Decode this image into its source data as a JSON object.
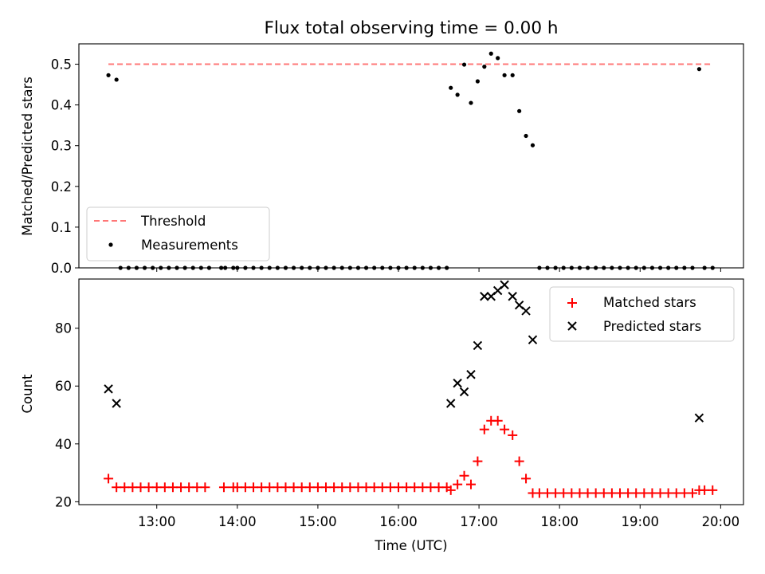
{
  "title": "Flux total observing time = 0.00 h",
  "colors": {
    "threshold": "#ff7777",
    "matched": "#ff0000",
    "predicted": "#000000",
    "measurement": "#000000"
  },
  "chart_data": [
    {
      "type": "scatter",
      "ylabel": "Matched/Predicted stars",
      "xlabel": "",
      "ylim": [
        0,
        0.55
      ],
      "xlim": [
        "12:02",
        "20:17"
      ],
      "yticks": [
        "0.0",
        "0.1",
        "0.2",
        "0.3",
        "0.4",
        "0.5"
      ],
      "grid": false,
      "legend": {
        "position": "lower-left",
        "entries": [
          "Threshold",
          "Measurements"
        ]
      },
      "threshold": {
        "name": "Threshold",
        "y": 0.5,
        "x_start": "12:24",
        "x_end": "19:54"
      },
      "series": [
        {
          "name": "Measurements",
          "points": [
            [
              "12:24",
              0.473
            ],
            [
              "12:30",
              0.462
            ],
            [
              "12:33",
              0
            ],
            [
              "12:39",
              0
            ],
            [
              "12:45",
              0
            ],
            [
              "12:51",
              0
            ],
            [
              "12:57",
              0
            ],
            [
              "13:03",
              0
            ],
            [
              "13:09",
              0
            ],
            [
              "13:15",
              0
            ],
            [
              "13:21",
              0
            ],
            [
              "13:27",
              0
            ],
            [
              "13:33",
              0
            ],
            [
              "13:39",
              0
            ],
            [
              "13:48",
              0
            ],
            [
              "13:51",
              0
            ],
            [
              "13:57",
              0
            ],
            [
              "14:00",
              0
            ],
            [
              "14:06",
              0
            ],
            [
              "14:12",
              0
            ],
            [
              "14:18",
              0
            ],
            [
              "14:24",
              0
            ],
            [
              "14:30",
              0
            ],
            [
              "14:36",
              0
            ],
            [
              "14:42",
              0
            ],
            [
              "14:48",
              0
            ],
            [
              "14:54",
              0
            ],
            [
              "15:00",
              0
            ],
            [
              "15:06",
              0
            ],
            [
              "15:12",
              0
            ],
            [
              "15:18",
              0
            ],
            [
              "15:24",
              0
            ],
            [
              "15:30",
              0
            ],
            [
              "15:36",
              0
            ],
            [
              "15:42",
              0
            ],
            [
              "15:48",
              0
            ],
            [
              "15:54",
              0
            ],
            [
              "16:00",
              0
            ],
            [
              "16:06",
              0
            ],
            [
              "16:12",
              0
            ],
            [
              "16:18",
              0
            ],
            [
              "16:24",
              0
            ],
            [
              "16:30",
              0
            ],
            [
              "16:36",
              0
            ],
            [
              "16:39",
              0.442
            ],
            [
              "16:44",
              0.425
            ],
            [
              "16:49",
              0.499
            ],
            [
              "16:54",
              0.405
            ],
            [
              "16:59",
              0.458
            ],
            [
              "17:04",
              0.494
            ],
            [
              "17:09",
              0.526
            ],
            [
              "17:14",
              0.515
            ],
            [
              "17:19",
              0.473
            ],
            [
              "17:25",
              0.473
            ],
            [
              "17:30",
              0.385
            ],
            [
              "17:35",
              0.324
            ],
            [
              "17:40",
              0.301
            ],
            [
              "17:45",
              0
            ],
            [
              "17:51",
              0
            ],
            [
              "17:57",
              0
            ],
            [
              "18:03",
              0
            ],
            [
              "18:09",
              0
            ],
            [
              "18:15",
              0
            ],
            [
              "18:21",
              0
            ],
            [
              "18:27",
              0
            ],
            [
              "18:33",
              0
            ],
            [
              "18:39",
              0
            ],
            [
              "18:45",
              0
            ],
            [
              "18:51",
              0
            ],
            [
              "18:57",
              0
            ],
            [
              "19:03",
              0
            ],
            [
              "19:09",
              0
            ],
            [
              "19:15",
              0
            ],
            [
              "19:21",
              0
            ],
            [
              "19:27",
              0
            ],
            [
              "19:33",
              0
            ],
            [
              "19:39",
              0
            ],
            [
              "19:44",
              0.488
            ],
            [
              "19:48",
              0
            ],
            [
              "19:54",
              0
            ]
          ]
        }
      ]
    },
    {
      "type": "scatter",
      "ylabel": "Count",
      "xlabel": "Time (UTC)",
      "ylim": [
        19,
        97
      ],
      "xlim": [
        "12:02",
        "20:17"
      ],
      "yticks": [
        "20",
        "40",
        "60",
        "80"
      ],
      "xticks": [
        "13:00",
        "14:00",
        "15:00",
        "16:00",
        "17:00",
        "18:00",
        "19:00",
        "20:00"
      ],
      "grid": false,
      "legend": {
        "position": "top-right",
        "entries": [
          "Matched stars",
          "Predicted stars"
        ]
      },
      "series": [
        {
          "name": "Matched stars",
          "points": [
            [
              "12:24",
              28
            ],
            [
              "12:30",
              25
            ],
            [
              "12:36",
              25
            ],
            [
              "12:42",
              25
            ],
            [
              "12:48",
              25
            ],
            [
              "12:54",
              25
            ],
            [
              "13:00",
              25
            ],
            [
              "13:06",
              25
            ],
            [
              "13:12",
              25
            ],
            [
              "13:18",
              25
            ],
            [
              "13:24",
              25
            ],
            [
              "13:30",
              25
            ],
            [
              "13:36",
              25
            ],
            [
              "13:50",
              25
            ],
            [
              "13:57",
              25
            ],
            [
              "14:00",
              25
            ],
            [
              "14:06",
              25
            ],
            [
              "14:12",
              25
            ],
            [
              "14:18",
              25
            ],
            [
              "14:24",
              25
            ],
            [
              "14:30",
              25
            ],
            [
              "14:36",
              25
            ],
            [
              "14:42",
              25
            ],
            [
              "14:48",
              25
            ],
            [
              "14:54",
              25
            ],
            [
              "15:00",
              25
            ],
            [
              "15:06",
              25
            ],
            [
              "15:12",
              25
            ],
            [
              "15:18",
              25
            ],
            [
              "15:24",
              25
            ],
            [
              "15:30",
              25
            ],
            [
              "15:36",
              25
            ],
            [
              "15:42",
              25
            ],
            [
              "15:48",
              25
            ],
            [
              "15:54",
              25
            ],
            [
              "16:00",
              25
            ],
            [
              "16:06",
              25
            ],
            [
              "16:12",
              25
            ],
            [
              "16:18",
              25
            ],
            [
              "16:24",
              25
            ],
            [
              "16:30",
              25
            ],
            [
              "16:36",
              25
            ],
            [
              "16:39",
              24
            ],
            [
              "16:44",
              26
            ],
            [
              "16:49",
              29
            ],
            [
              "16:54",
              26
            ],
            [
              "16:59",
              34
            ],
            [
              "17:04",
              45
            ],
            [
              "17:09",
              48
            ],
            [
              "17:14",
              48
            ],
            [
              "17:19",
              45
            ],
            [
              "17:25",
              43
            ],
            [
              "17:30",
              34
            ],
            [
              "17:35",
              28
            ],
            [
              "17:40",
              23
            ],
            [
              "17:45",
              23
            ],
            [
              "17:51",
              23
            ],
            [
              "17:57",
              23
            ],
            [
              "18:03",
              23
            ],
            [
              "18:09",
              23
            ],
            [
              "18:15",
              23
            ],
            [
              "18:21",
              23
            ],
            [
              "18:27",
              23
            ],
            [
              "18:33",
              23
            ],
            [
              "18:39",
              23
            ],
            [
              "18:45",
              23
            ],
            [
              "18:51",
              23
            ],
            [
              "18:57",
              23
            ],
            [
              "19:03",
              23
            ],
            [
              "19:09",
              23
            ],
            [
              "19:15",
              23
            ],
            [
              "19:21",
              23
            ],
            [
              "19:27",
              23
            ],
            [
              "19:33",
              23
            ],
            [
              "19:39",
              23
            ],
            [
              "19:44",
              24
            ],
            [
              "19:48",
              24
            ],
            [
              "19:54",
              24
            ]
          ]
        },
        {
          "name": "Predicted stars",
          "points": [
            [
              "12:24",
              59
            ],
            [
              "12:30",
              54
            ],
            [
              "16:39",
              54
            ],
            [
              "16:44",
              61
            ],
            [
              "16:49",
              58
            ],
            [
              "16:54",
              64
            ],
            [
              "16:59",
              74
            ],
            [
              "17:04",
              91
            ],
            [
              "17:09",
              91
            ],
            [
              "17:14",
              93
            ],
            [
              "17:19",
              95
            ],
            [
              "17:25",
              91
            ],
            [
              "17:30",
              88
            ],
            [
              "17:35",
              86
            ],
            [
              "17:40",
              76
            ],
            [
              "19:44",
              49
            ]
          ]
        }
      ]
    }
  ]
}
